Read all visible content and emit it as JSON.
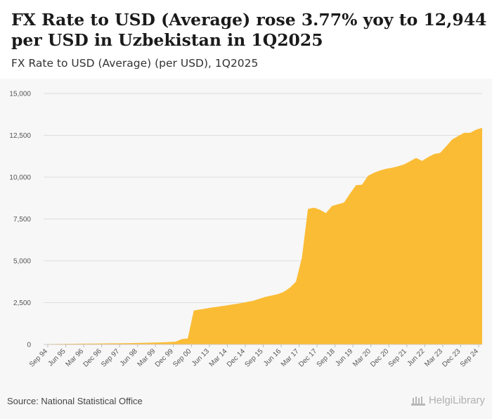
{
  "header": {
    "title": "FX Rate to USD (Average) rose 3.77% yoy to 12,944 per USD in Uzbekistan in 1Q2025",
    "subtitle": "FX Rate to USD (Average) (per USD), 1Q2025"
  },
  "footer": {
    "source": "Source: National Statistical Office",
    "brand": "HelgiLibrary"
  },
  "colors": {
    "area": "#fbbc35",
    "grid": "#dddddd"
  },
  "chart_data": {
    "type": "area",
    "title": "FX Rate to USD (Average) rose 3.77% yoy to 12,944 per USD in Uzbekistan in 1Q2025",
    "subtitle": "FX Rate to USD (Average) (per USD), 1Q2025",
    "xlabel": "",
    "ylabel": "",
    "ylim": [
      0,
      15000
    ],
    "yticks": [
      0,
      2500,
      5000,
      7500,
      10000,
      12500,
      15000
    ],
    "ytick_labels": [
      "0",
      "2,500",
      "5,000",
      "7,500",
      "10,000",
      "12,500",
      "15,000"
    ],
    "xtick_labels": [
      "Sep 94",
      "Jun 95",
      "Mar 96",
      "Dec 96",
      "Sep 97",
      "Jun 98",
      "Mar 99",
      "Dec 99",
      "Sep 00",
      "Jun 13",
      "Mar 14",
      "Dec 14",
      "Sep 15",
      "Jun 16",
      "Mar 17",
      "Dec 17",
      "Sep 18",
      "Jun 19",
      "Mar 20",
      "Dec 20",
      "Sep 21",
      "Jun 22",
      "Mar 23",
      "Dec 23",
      "Sep 24"
    ],
    "grid": true,
    "legend": "none",
    "series": [
      {
        "name": "FX Rate to USD (Average)",
        "values": [
          20,
          27,
          33,
          38,
          41,
          44,
          47,
          50,
          54,
          58,
          62,
          66,
          70,
          75,
          80,
          85,
          92,
          100,
          110,
          120,
          130,
          145,
          170,
          320,
          360,
          2030,
          2090,
          2150,
          2210,
          2260,
          2310,
          2370,
          2420,
          2480,
          2550,
          2620,
          2740,
          2850,
          2930,
          3010,
          3150,
          3400,
          3750,
          5200,
          8100,
          8180,
          8050,
          7850,
          8280,
          8380,
          8480,
          9020,
          9520,
          9550,
          10080,
          10260,
          10400,
          10500,
          10560,
          10650,
          10760,
          10950,
          11150,
          10970,
          11200,
          11380,
          11450,
          11840,
          12250,
          12460,
          12650,
          12650,
          12840,
          12944
        ]
      }
    ]
  }
}
